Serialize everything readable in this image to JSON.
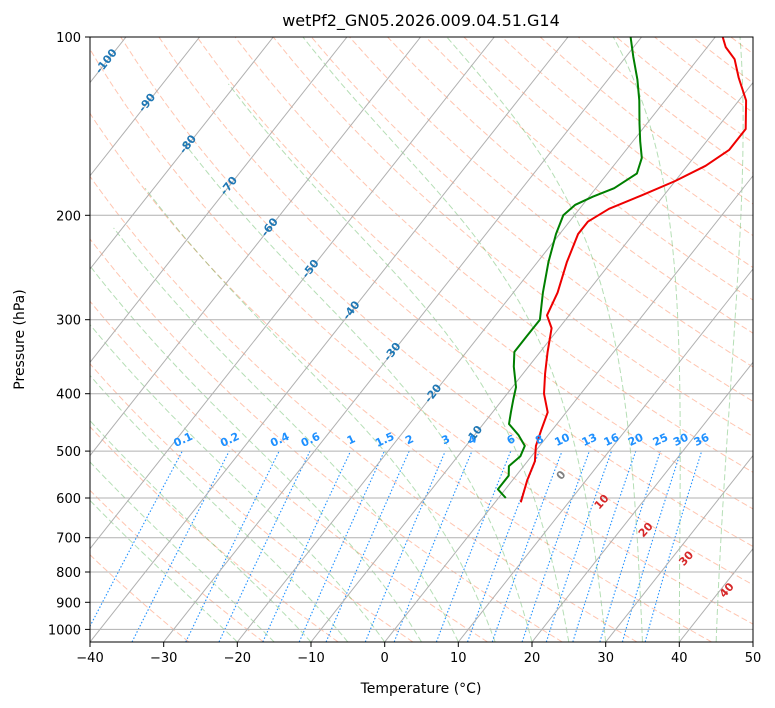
{
  "chart_data": {
    "type": "skew-t",
    "title": "wetPf2_GN05.2026.009.04.51.G14",
    "xlabel": "Temperature (°C)",
    "ylabel": "Pressure (hPa)",
    "xlim": [
      -40,
      50
    ],
    "ylim": [
      1050,
      100
    ],
    "y_scale": "log",
    "grid": true,
    "x_ticks": [
      -40,
      -30,
      -20,
      -10,
      0,
      10,
      20,
      30,
      40,
      50
    ],
    "y_ticks": [
      100,
      200,
      300,
      400,
      500,
      600,
      700,
      800,
      900,
      1000
    ],
    "series": [
      {
        "kind": "temperature",
        "color": "#ee0000",
        "points": [
          {
            "p": 610,
            "t": 3.5
          },
          {
            "p": 560,
            "t": 2
          },
          {
            "p": 520,
            "t": 1
          },
          {
            "p": 490,
            "t": -0.5
          },
          {
            "p": 460,
            "t": -1.5
          },
          {
            "p": 430,
            "t": -2.5
          },
          {
            "p": 400,
            "t": -5
          },
          {
            "p": 370,
            "t": -7
          },
          {
            "p": 340,
            "t": -9
          },
          {
            "p": 310,
            "t": -11
          },
          {
            "p": 295,
            "t": -13
          },
          {
            "p": 270,
            "t": -14
          },
          {
            "p": 240,
            "t": -16
          },
          {
            "p": 215,
            "t": -17.5
          },
          {
            "p": 205,
            "t": -17.5
          },
          {
            "p": 195,
            "t": -16
          },
          {
            "p": 185,
            "t": -13
          },
          {
            "p": 175,
            "t": -10
          },
          {
            "p": 165,
            "t": -7.5
          },
          {
            "p": 155,
            "t": -6
          },
          {
            "p": 143,
            "t": -6
          },
          {
            "p": 128,
            "t": -9
          },
          {
            "p": 117,
            "t": -12.5
          },
          {
            "p": 109,
            "t": -15
          },
          {
            "p": 104,
            "t": -17.5
          },
          {
            "p": 100,
            "t": -19
          }
        ]
      },
      {
        "kind": "dewpoint",
        "color": "#007f00",
        "points": [
          {
            "p": 600,
            "t": 1
          },
          {
            "p": 580,
            "t": -1
          },
          {
            "p": 550,
            "t": -1
          },
          {
            "p": 530,
            "t": -2
          },
          {
            "p": 510,
            "t": -1.5
          },
          {
            "p": 490,
            "t": -2
          },
          {
            "p": 470,
            "t": -4
          },
          {
            "p": 450,
            "t": -6.5
          },
          {
            "p": 430,
            "t": -7.5
          },
          {
            "p": 410,
            "t": -8.5
          },
          {
            "p": 390,
            "t": -9.5
          },
          {
            "p": 360,
            "t": -12
          },
          {
            "p": 340,
            "t": -13.5
          },
          {
            "p": 320,
            "t": -13.5
          },
          {
            "p": 300,
            "t": -13.5
          },
          {
            "p": 270,
            "t": -16
          },
          {
            "p": 240,
            "t": -18.5
          },
          {
            "p": 215,
            "t": -20.5
          },
          {
            "p": 200,
            "t": -21.5
          },
          {
            "p": 192,
            "t": -21
          },
          {
            "p": 186,
            "t": -19.5
          },
          {
            "p": 180,
            "t": -17.5
          },
          {
            "p": 170,
            "t": -16
          },
          {
            "p": 160,
            "t": -17
          },
          {
            "p": 150,
            "t": -19
          },
          {
            "p": 140,
            "t": -21
          },
          {
            "p": 128,
            "t": -23.5
          },
          {
            "p": 118,
            "t": -26
          },
          {
            "p": 108,
            "t": -29
          },
          {
            "p": 100,
            "t": -31.5
          }
        ]
      }
    ],
    "isotherm_labels": [
      "-100",
      "-90",
      "-80",
      "-70",
      "-60",
      "-50",
      "-40",
      "-30",
      "-20",
      "-10"
    ],
    "mixing_ratio_labels": [
      "0.1",
      "0.2",
      "0.4",
      "0.6",
      "1",
      "1.5",
      "2",
      "3",
      "4",
      "6",
      "8",
      "10",
      "13",
      "16",
      "20",
      "25",
      "30",
      "36"
    ],
    "moist_adiabat_labels": [
      "0",
      "10",
      "20",
      "30",
      "40"
    ],
    "colors": {
      "isotherm_label": "#1f77b4",
      "mixing_ratio": "#1e90ff",
      "dry_adiabat": "#ff7f50",
      "moist_adiabat": "#2ca02c",
      "moist_adiabat_label": "#d62728",
      "zero_label": "#808080",
      "grid": "#b0b0b0"
    }
  }
}
